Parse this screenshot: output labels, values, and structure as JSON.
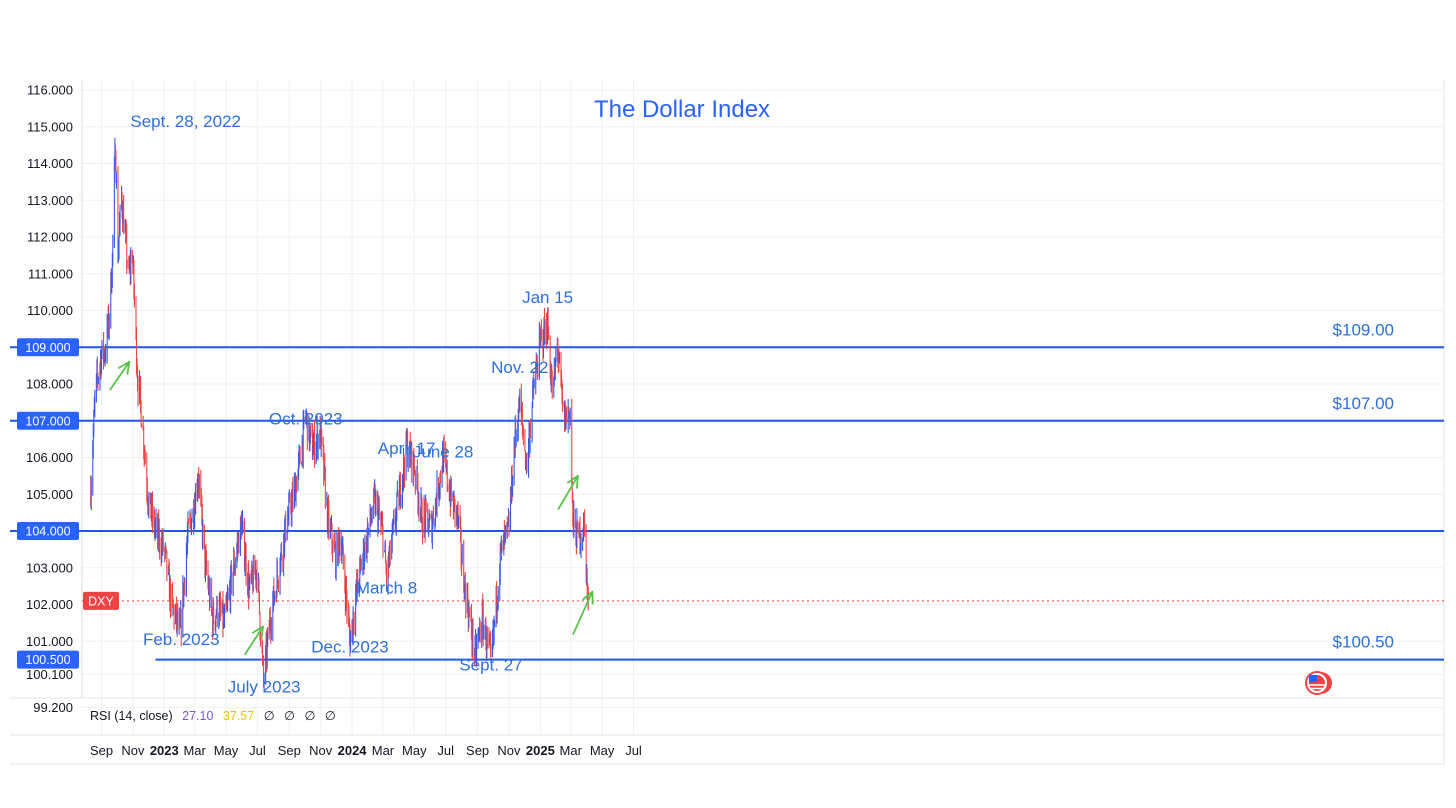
{
  "chart_data": {
    "type": "candlestick",
    "title": "The Dollar Index",
    "symbol_badge": "DXY",
    "x_axis": {
      "ticks": [
        {
          "label": "Sep",
          "date": "2022-09-01",
          "bold": false
        },
        {
          "label": "Nov",
          "date": "2022-11-01",
          "bold": false
        },
        {
          "label": "2023",
          "date": "2023-01-01",
          "bold": true
        },
        {
          "label": "Mar",
          "date": "2023-03-01",
          "bold": false
        },
        {
          "label": "May",
          "date": "2023-05-01",
          "bold": false
        },
        {
          "label": "Jul",
          "date": "2023-07-01",
          "bold": false
        },
        {
          "label": "Sep",
          "date": "2023-09-01",
          "bold": false
        },
        {
          "label": "Nov",
          "date": "2023-11-01",
          "bold": false
        },
        {
          "label": "2024",
          "date": "2024-01-01",
          "bold": true
        },
        {
          "label": "Mar",
          "date": "2024-03-01",
          "bold": false
        },
        {
          "label": "May",
          "date": "2024-05-01",
          "bold": false
        },
        {
          "label": "Jul",
          "date": "2024-07-01",
          "bold": false
        },
        {
          "label": "Sep",
          "date": "2024-09-01",
          "bold": false
        },
        {
          "label": "Nov",
          "date": "2024-11-01",
          "bold": false
        },
        {
          "label": "2025",
          "date": "2025-01-01",
          "bold": true
        },
        {
          "label": "Mar",
          "date": "2025-03-01",
          "bold": false
        },
        {
          "label": "May",
          "date": "2025-05-01",
          "bold": false
        },
        {
          "label": "Jul",
          "date": "2025-07-01",
          "bold": false
        }
      ]
    },
    "y_axis": {
      "range": [
        99.2,
        116.0
      ],
      "ticks": [
        "116.000",
        "115.000",
        "114.000",
        "113.000",
        "112.000",
        "111.000",
        "110.000",
        "108.000",
        "106.000",
        "105.000",
        "103.000",
        "102.000",
        "101.000",
        "100.100",
        "99.200"
      ],
      "tick_values": [
        116,
        115,
        114,
        113,
        112,
        111,
        110,
        108,
        106,
        105,
        103,
        102,
        101,
        100.1,
        99.2
      ]
    },
    "grid": true,
    "horizontal_levels": [
      {
        "value": 109.0,
        "axis_badge": "109.000",
        "label": "$109.00"
      },
      {
        "value": 107.0,
        "axis_badge": "107.000",
        "label": "$107.00"
      },
      {
        "value": 104.0,
        "axis_badge": "104.000",
        "label": ""
      },
      {
        "value": 100.5,
        "axis_badge": "100.500",
        "label": "$100.50",
        "start_date": "2022-12-15"
      }
    ],
    "last_price_line": {
      "value": 102.1
    },
    "annotations": [
      {
        "text": "Sept. 28, 2022",
        "date": "2022-09-28",
        "value": 115.0
      },
      {
        "text": "Feb. 2023",
        "date": "2023-02-03",
        "value": 100.9
      },
      {
        "text": "July 2023",
        "date": "2023-07-14",
        "value": 99.6
      },
      {
        "text": "Oct. 2023",
        "date": "2023-10-03",
        "value": 106.9
      },
      {
        "text": "Dec. 2023",
        "date": "2023-12-28",
        "value": 100.7
      },
      {
        "text": "April 17",
        "date": "2024-04-16",
        "value": 106.1
      },
      {
        "text": "March 8",
        "date": "2024-03-08",
        "value": 102.3
      },
      {
        "text": "June 28",
        "date": "2024-06-26",
        "value": 106.0
      },
      {
        "text": "Sept. 27",
        "date": "2024-09-27",
        "value": 100.2
      },
      {
        "text": "Nov. 22",
        "date": "2024-11-22",
        "value": 108.3
      },
      {
        "text": "Jan 15",
        "date": "2025-01-15",
        "value": 110.2
      }
    ],
    "arrows": [
      {
        "from": {
          "date": "2022-09-18",
          "value": 107.85
        },
        "to": {
          "date": "2022-10-25",
          "value": 108.6
        }
      },
      {
        "from": {
          "date": "2023-06-07",
          "value": 100.65
        },
        "to": {
          "date": "2023-07-12",
          "value": 101.4
        }
      },
      {
        "from": {
          "date": "2025-02-05",
          "value": 104.6
        },
        "to": {
          "date": "2025-03-15",
          "value": 105.5
        }
      },
      {
        "from": {
          "date": "2025-03-06",
          "value": 101.2
        },
        "to": {
          "date": "2025-04-12",
          "value": 102.35
        }
      }
    ],
    "series": [
      {
        "date": "2022-08-11",
        "close": 105.2
      },
      {
        "date": "2022-08-20",
        "close": 107.8
      },
      {
        "date": "2022-09-01",
        "close": 108.8
      },
      {
        "date": "2022-09-08",
        "close": 108.9
      },
      {
        "date": "2022-09-15",
        "close": 109.7
      },
      {
        "date": "2022-09-22",
        "close": 111.4
      },
      {
        "date": "2022-09-28",
        "close": 114.6
      },
      {
        "date": "2022-10-03",
        "close": 111.6
      },
      {
        "date": "2022-10-10",
        "close": 113.1
      },
      {
        "date": "2022-10-17",
        "close": 112.0
      },
      {
        "date": "2022-10-24",
        "close": 110.9
      },
      {
        "date": "2022-10-31",
        "close": 111.6
      },
      {
        "date": "2022-11-10",
        "close": 108.2
      },
      {
        "date": "2022-11-20",
        "close": 106.9
      },
      {
        "date": "2022-12-01",
        "close": 104.8
      },
      {
        "date": "2022-12-15",
        "close": 104.0
      },
      {
        "date": "2023-01-01",
        "close": 103.5
      },
      {
        "date": "2023-01-15",
        "close": 102.0
      },
      {
        "date": "2023-02-01",
        "close": 101.2
      },
      {
        "date": "2023-02-15",
        "close": 103.8
      },
      {
        "date": "2023-03-01",
        "close": 104.8
      },
      {
        "date": "2023-03-08",
        "close": 105.6
      },
      {
        "date": "2023-03-20",
        "close": 103.3
      },
      {
        "date": "2023-04-05",
        "close": 101.6
      },
      {
        "date": "2023-04-15",
        "close": 101.9
      },
      {
        "date": "2023-04-28",
        "close": 101.5
      },
      {
        "date": "2023-05-12",
        "close": 102.7
      },
      {
        "date": "2023-05-31",
        "close": 104.2
      },
      {
        "date": "2023-06-15",
        "close": 102.4
      },
      {
        "date": "2023-06-30",
        "close": 103.0
      },
      {
        "date": "2023-07-13",
        "close": 99.9
      },
      {
        "date": "2023-07-25",
        "close": 101.5
      },
      {
        "date": "2023-08-10",
        "close": 102.9
      },
      {
        "date": "2023-08-25",
        "close": 104.1
      },
      {
        "date": "2023-09-10",
        "close": 105.0
      },
      {
        "date": "2023-09-25",
        "close": 106.2
      },
      {
        "date": "2023-10-03",
        "close": 107.1
      },
      {
        "date": "2023-10-15",
        "close": 106.2
      },
      {
        "date": "2023-10-31",
        "close": 106.7
      },
      {
        "date": "2023-11-15",
        "close": 104.3
      },
      {
        "date": "2023-11-30",
        "close": 103.3
      },
      {
        "date": "2023-12-10",
        "close": 103.9
      },
      {
        "date": "2023-12-28",
        "close": 101.0
      },
      {
        "date": "2024-01-10",
        "close": 102.4
      },
      {
        "date": "2024-01-25",
        "close": 103.5
      },
      {
        "date": "2024-02-14",
        "close": 104.8
      },
      {
        "date": "2024-03-01",
        "close": 103.9
      },
      {
        "date": "2024-03-08",
        "close": 102.7
      },
      {
        "date": "2024-03-25",
        "close": 104.3
      },
      {
        "date": "2024-04-16",
        "close": 106.3
      },
      {
        "date": "2024-05-01",
        "close": 105.8
      },
      {
        "date": "2024-05-15",
        "close": 104.4
      },
      {
        "date": "2024-06-03",
        "close": 104.1
      },
      {
        "date": "2024-06-26",
        "close": 106.0
      },
      {
        "date": "2024-07-10",
        "close": 105.0
      },
      {
        "date": "2024-07-25",
        "close": 104.3
      },
      {
        "date": "2024-08-05",
        "close": 102.7
      },
      {
        "date": "2024-08-27",
        "close": 100.6
      },
      {
        "date": "2024-09-10",
        "close": 101.6
      },
      {
        "date": "2024-09-27",
        "close": 100.4
      },
      {
        "date": "2024-10-15",
        "close": 103.3
      },
      {
        "date": "2024-10-31",
        "close": 104.0
      },
      {
        "date": "2024-11-12",
        "close": 106.4
      },
      {
        "date": "2024-11-22",
        "close": 107.5
      },
      {
        "date": "2024-12-05",
        "close": 105.8
      },
      {
        "date": "2024-12-20",
        "close": 108.0
      },
      {
        "date": "2025-01-02",
        "close": 109.2
      },
      {
        "date": "2025-01-15",
        "close": 109.6
      },
      {
        "date": "2025-01-25",
        "close": 107.6
      },
      {
        "date": "2025-02-03",
        "close": 109.1
      },
      {
        "date": "2025-02-15",
        "close": 107.0
      },
      {
        "date": "2025-02-28",
        "close": 107.3
      },
      {
        "date": "2025-03-05",
        "close": 104.2
      },
      {
        "date": "2025-03-15",
        "close": 103.8
      },
      {
        "date": "2025-03-28",
        "close": 104.1
      },
      {
        "date": "2025-04-03",
        "close": 102.1
      },
      {
        "date": "2025-04-05",
        "close": 101.4
      }
    ]
  },
  "indicator": {
    "label": "RSI (14, close)",
    "value_1": "27.10",
    "value_2": "37.57",
    "empty_1": "∅",
    "empty_2": "∅",
    "empty_3": "∅",
    "empty_4": "∅"
  },
  "colors": {
    "title": "#2962ff",
    "annotation": "#2e6fdc",
    "level_line": "#1e56e8",
    "badge_bg": "#2962ff",
    "up_candle": "#3757e8",
    "down_candle": "#ef4444",
    "arrow": "#58c24a",
    "last_price": "#f04444",
    "rsi_1": "#7e57c2",
    "rsi_2": "#e8c500",
    "grid": "#eef0f3",
    "axis_text": "#131722"
  }
}
